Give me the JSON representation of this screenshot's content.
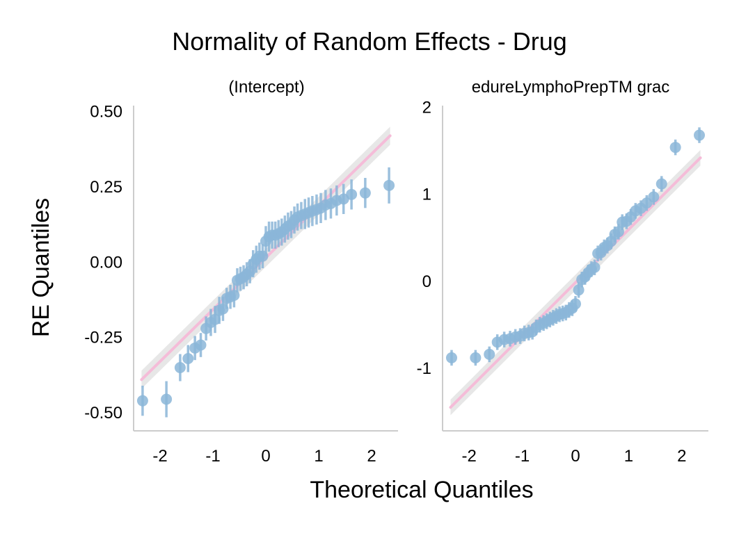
{
  "chart_data": {
    "type": "scatter",
    "title": "Normality of Random Effects - Drug",
    "xlabel": "Theoretical Quantiles",
    "ylabel": "RE Quantiles",
    "grid": false,
    "colors": {
      "points": "#8bb6d8",
      "reference_line": "#f5bcd8",
      "confidence_band": "#e3e3e3",
      "axis": "#cccccc"
    },
    "panels": [
      {
        "title": "(Intercept)",
        "xlim": [
          -2.5,
          2.5
        ],
        "ylim": [
          -0.56,
          0.52
        ],
        "xticks": [
          "-2",
          "-1",
          "0",
          "1",
          "2"
        ],
        "yticks": [
          "0.50",
          "0.25",
          "0.00",
          "-0.25",
          "-0.50"
        ],
        "reference_line": {
          "start": [
            -2.35,
            -0.39
          ],
          "end": [
            2.35,
            0.42
          ]
        },
        "band_halfwidth": 0.03,
        "x": [
          -2.33,
          -1.88,
          -1.62,
          -1.47,
          -1.34,
          -1.23,
          -1.13,
          -1.04,
          -0.96,
          -0.88,
          -0.81,
          -0.74,
          -0.67,
          -0.6,
          -0.54,
          -0.48,
          -0.42,
          -0.36,
          -0.3,
          -0.24,
          -0.18,
          -0.12,
          -0.06,
          0.0,
          0.06,
          0.12,
          0.18,
          0.24,
          0.3,
          0.36,
          0.42,
          0.48,
          0.54,
          0.6,
          0.67,
          0.74,
          0.81,
          0.88,
          0.96,
          1.04,
          1.13,
          1.23,
          1.34,
          1.47,
          1.62,
          1.88,
          2.33
        ],
        "y": [
          -0.46,
          -0.455,
          -0.35,
          -0.32,
          -0.285,
          -0.275,
          -0.22,
          -0.2,
          -0.19,
          -0.16,
          -0.155,
          -0.12,
          -0.115,
          -0.11,
          -0.06,
          -0.055,
          -0.05,
          -0.04,
          -0.03,
          -0.005,
          0.01,
          0.02,
          0.02,
          0.07,
          0.085,
          0.09,
          0.09,
          0.095,
          0.1,
          0.11,
          0.12,
          0.125,
          0.14,
          0.15,
          0.155,
          0.16,
          0.165,
          0.17,
          0.175,
          0.18,
          0.19,
          0.195,
          0.205,
          0.21,
          0.225,
          0.23,
          0.255
        ],
        "yerr": [
          0.05,
          0.06,
          0.045,
          0.045,
          0.04,
          0.04,
          0.04,
          0.045,
          0.045,
          0.045,
          0.04,
          0.035,
          0.04,
          0.04,
          0.04,
          0.04,
          0.04,
          0.04,
          0.04,
          0.045,
          0.045,
          0.045,
          0.04,
          0.05,
          0.05,
          0.045,
          0.045,
          0.045,
          0.045,
          0.045,
          0.045,
          0.045,
          0.045,
          0.045,
          0.045,
          0.05,
          0.05,
          0.05,
          0.05,
          0.05,
          0.05,
          0.05,
          0.05,
          0.05,
          0.05,
          0.05,
          0.06
        ]
      },
      {
        "title": "edureLymphoPrepTM grac",
        "xlim": [
          -2.5,
          2.5
        ],
        "ylim": [
          -1.72,
          2.02
        ],
        "xticks": [
          "-2",
          "-1",
          "0",
          "1",
          "2"
        ],
        "yticks": [
          "2",
          "1",
          "0",
          "-1"
        ],
        "reference_line": {
          "start": [
            -2.35,
            -1.45
          ],
          "end": [
            2.35,
            1.42
          ]
        },
        "band_halfwidth": 0.09,
        "x": [
          -2.33,
          -1.88,
          -1.62,
          -1.47,
          -1.34,
          -1.23,
          -1.13,
          -1.04,
          -0.96,
          -0.88,
          -0.81,
          -0.74,
          -0.67,
          -0.6,
          -0.54,
          -0.48,
          -0.42,
          -0.36,
          -0.3,
          -0.24,
          -0.18,
          -0.12,
          -0.06,
          0.0,
          0.06,
          0.12,
          0.18,
          0.24,
          0.3,
          0.36,
          0.42,
          0.48,
          0.54,
          0.6,
          0.67,
          0.74,
          0.81,
          0.88,
          0.96,
          1.04,
          1.13,
          1.23,
          1.34,
          1.47,
          1.62,
          1.88,
          2.33
        ],
        "y": [
          -0.88,
          -0.88,
          -0.84,
          -0.7,
          -0.67,
          -0.66,
          -0.64,
          -0.63,
          -0.6,
          -0.59,
          -0.58,
          -0.53,
          -0.5,
          -0.48,
          -0.46,
          -0.44,
          -0.42,
          -0.4,
          -0.38,
          -0.37,
          -0.36,
          -0.33,
          -0.31,
          -0.26,
          -0.1,
          0.02,
          0.05,
          0.1,
          0.14,
          0.16,
          0.32,
          0.33,
          0.39,
          0.41,
          0.46,
          0.54,
          0.57,
          0.68,
          0.69,
          0.74,
          0.81,
          0.84,
          0.9,
          0.97,
          1.12,
          1.54,
          1.68
        ]
      }
    ]
  }
}
